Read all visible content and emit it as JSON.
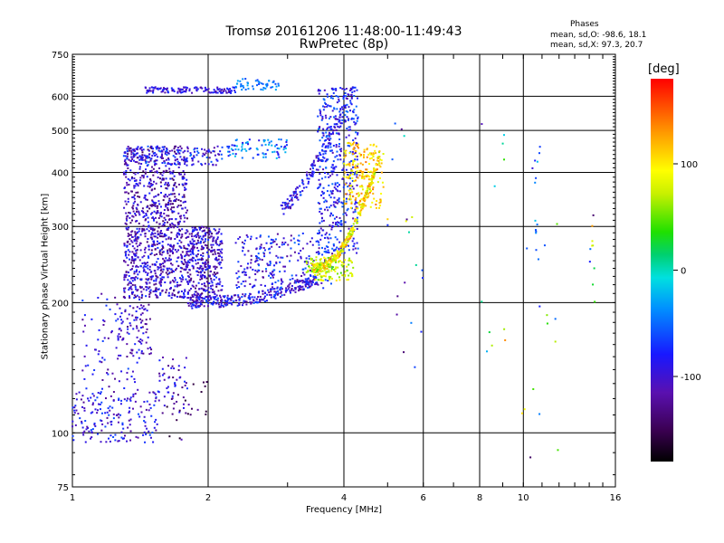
{
  "header": {
    "title_line1": "Tromsø 20161206 11:48:00-11:49:43",
    "title_line2": "RwPretec (8p)"
  },
  "stats": {
    "title": "Phases",
    "o_line": "mean, sd,O: -98.6, 18.1",
    "x_line": "mean, sd,X:  97.3, 20.7"
  },
  "colorbar": {
    "unit": "[deg]",
    "ticks": [
      "100",
      "0",
      "-100"
    ],
    "tick_values": [
      100,
      0,
      -100
    ],
    "range": [
      -180,
      180
    ],
    "colormap": "rainbow (black-purple-blue-cyan-green-yellow-orange-red)"
  },
  "chart_data": {
    "type": "scatter",
    "title": "Tromsø 20161206 11:48:00-11:49:43",
    "subtitle": "RwPretec (8p)",
    "xlabel": "Frequency [MHz]",
    "ylabel": "Stationary phase Virtual Height [km]",
    "xscale": "log",
    "yscale": "log",
    "xlim": [
      1,
      16
    ],
    "ylim": [
      75,
      750
    ],
    "xticks": [
      1,
      2,
      4,
      6,
      8,
      10,
      16
    ],
    "yticks": [
      75,
      100,
      200,
      300,
      400,
      500,
      600,
      750
    ],
    "grid": true,
    "color_encoding": "phase [deg]",
    "series": [
      {
        "freq_range": [
          1.3,
          2.2
        ],
        "height_range": [
          200,
          460
        ],
        "phase_deg": -110
      },
      {
        "freq_range": [
          1.3,
          2.1
        ],
        "height_range": [
          415,
          460
        ],
        "phase_deg": -95
      },
      {
        "freq_range": [
          1.4,
          2.8
        ],
        "height_range": [
          600,
          660
        ],
        "phase_deg": -100
      },
      {
        "freq_range": [
          2.2,
          3.8
        ],
        "height_range": [
          210,
          290
        ],
        "phase_deg": -95
      },
      {
        "freq_range": [
          3.3,
          4.3
        ],
        "height_range": [
          230,
          640
        ],
        "phase_deg": -90
      },
      {
        "freq_range": [
          3.5,
          5.0
        ],
        "height_range": [
          230,
          470
        ],
        "phase_deg": 100
      },
      {
        "freq_range": [
          1.0,
          1.5
        ],
        "height_range": [
          95,
          135
        ],
        "phase_deg": -105
      },
      {
        "freq_range": [
          1.05,
          1.5
        ],
        "height_range": [
          135,
          210
        ],
        "phase_deg": -100
      }
    ]
  }
}
